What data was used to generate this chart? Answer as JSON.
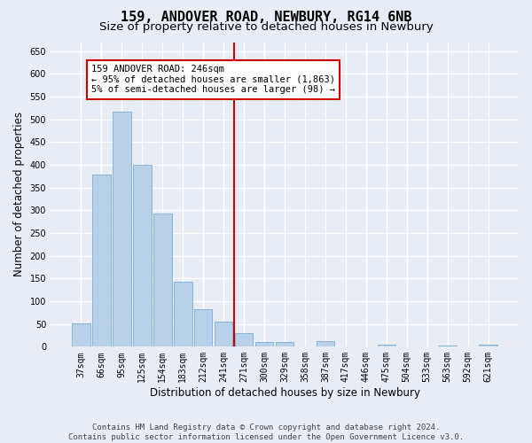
{
  "title": "159, ANDOVER ROAD, NEWBURY, RG14 6NB",
  "subtitle": "Size of property relative to detached houses in Newbury",
  "xlabel": "Distribution of detached houses by size in Newbury",
  "ylabel": "Number of detached properties",
  "categories": [
    "37sqm",
    "66sqm",
    "95sqm",
    "125sqm",
    "154sqm",
    "183sqm",
    "212sqm",
    "241sqm",
    "271sqm",
    "300sqm",
    "329sqm",
    "358sqm",
    "387sqm",
    "417sqm",
    "446sqm",
    "475sqm",
    "504sqm",
    "533sqm",
    "563sqm",
    "592sqm",
    "621sqm"
  ],
  "values": [
    51,
    378,
    517,
    401,
    292,
    143,
    83,
    55,
    30,
    11,
    11,
    0,
    12,
    0,
    0,
    5,
    0,
    0,
    3,
    0,
    4
  ],
  "bar_color": "#b8d0e8",
  "bar_edge_color": "#7aafd4",
  "vline_x": 7.5,
  "vline_color": "#cc0000",
  "annotation_text": "159 ANDOVER ROAD: 246sqm\n← 95% of detached houses are smaller (1,863)\n5% of semi-detached houses are larger (98) →",
  "annotation_box_facecolor": "#ffffff",
  "annotation_box_edgecolor": "#cc0000",
  "ylim_max": 670,
  "yticks": [
    0,
    50,
    100,
    150,
    200,
    250,
    300,
    350,
    400,
    450,
    500,
    550,
    600,
    650
  ],
  "background_color": "#e8edf5",
  "grid_color": "#ffffff",
  "footer_line1": "Contains HM Land Registry data © Crown copyright and database right 2024.",
  "footer_line2": "Contains public sector information licensed under the Open Government Licence v3.0.",
  "title_fontsize": 11,
  "subtitle_fontsize": 9.5,
  "axis_label_fontsize": 8.5,
  "tick_fontsize": 7,
  "footer_fontsize": 6.5,
  "annotation_fontsize": 7.5
}
